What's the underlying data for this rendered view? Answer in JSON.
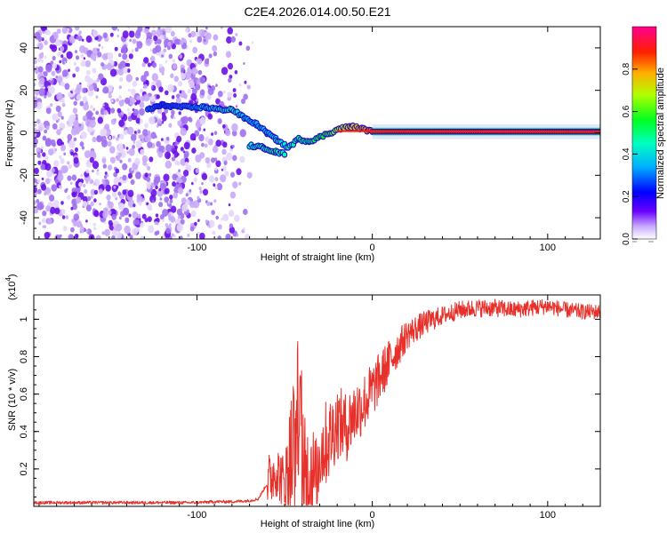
{
  "title": "C2E4.2026.014.00.50.E21",
  "chart_data": [
    {
      "type": "heatmap",
      "xlabel": "Height of straight line (km)",
      "ylabel": "Frequency (Hz)",
      "xlim": [
        -193,
        130
      ],
      "ylim": [
        -50,
        50
      ],
      "xticks": [
        -100,
        0,
        100
      ],
      "xtick_labels": [
        "-100",
        "0",
        "100"
      ],
      "yticks": [
        -40,
        -20,
        0,
        20,
        40
      ],
      "ytick_labels": [
        "-40",
        "-20",
        "0",
        "20",
        "40"
      ],
      "noise_region_x": [
        -193,
        -75
      ],
      "colorbar": {
        "label": "Normalized spectral amplitude",
        "range": [
          0,
          1
        ],
        "ticks": [
          0,
          0.2,
          0.4,
          0.6,
          0.8
        ],
        "tick_labels": [
          "0.0",
          "0.2",
          "0.4",
          "0.6",
          "0.8"
        ],
        "colormap": [
          "#ffffff",
          "#6a00ff",
          "#0000ff",
          "#00c8ff",
          "#00ff40",
          "#c8ff00",
          "#ffb000",
          "#ff0000",
          "#ff0080"
        ]
      },
      "ridge": {
        "name": "dominant frequency track",
        "points": [
          {
            "x": -128,
            "y": 11,
            "amp": 0.3
          },
          {
            "x": -120,
            "y": 13,
            "amp": 0.25
          },
          {
            "x": -105,
            "y": 12,
            "amp": 0.3
          },
          {
            "x": -95,
            "y": 12,
            "amp": 0.35
          },
          {
            "x": -87,
            "y": 11,
            "amp": 0.4
          },
          {
            "x": -80,
            "y": 11,
            "amp": 0.45
          },
          {
            "x": -73,
            "y": 7,
            "amp": 0.35
          },
          {
            "x": -66,
            "y": 4,
            "amp": 0.35
          },
          {
            "x": -60,
            "y": 0,
            "amp": 0.35
          },
          {
            "x": -55,
            "y": -3,
            "amp": 0.4
          },
          {
            "x": -48,
            "y": -7,
            "amp": 0.45
          },
          {
            "x": -42,
            "y": -3,
            "amp": 0.5
          },
          {
            "x": -36,
            "y": -4,
            "amp": 0.5
          },
          {
            "x": -30,
            "y": -2,
            "amp": 0.55
          },
          {
            "x": -24,
            "y": 0,
            "amp": 0.6
          },
          {
            "x": -18,
            "y": 2,
            "amp": 0.7
          },
          {
            "x": -12,
            "y": 3,
            "amp": 0.75
          },
          {
            "x": -6,
            "y": 2,
            "amp": 0.8
          },
          {
            "x": 0,
            "y": 0.5,
            "amp": 0.85
          },
          {
            "x": 20,
            "y": 0.5,
            "amp": 0.9
          },
          {
            "x": 60,
            "y": 0.5,
            "amp": 0.92
          },
          {
            "x": 100,
            "y": 0.5,
            "amp": 0.9
          },
          {
            "x": 130,
            "y": 0.5,
            "amp": 0.88
          }
        ],
        "lower_branch": [
          {
            "x": -70,
            "y": -6,
            "amp": 0.45
          },
          {
            "x": -62,
            "y": -7,
            "amp": 0.45
          },
          {
            "x": -55,
            "y": -9,
            "amp": 0.5
          },
          {
            "x": -50,
            "y": -10,
            "amp": 0.45
          }
        ]
      }
    },
    {
      "type": "line",
      "xlabel": "Height of straight line (km)",
      "ylabel": "SNR (10 * v/v)",
      "y_multiplier": "(x10",
      "y_multiplier_exp": "4",
      "y_multiplier_close": ")",
      "xlim": [
        -193,
        130
      ],
      "ylim": [
        0,
        1.13
      ],
      "xticks": [
        -100,
        0,
        100
      ],
      "xtick_labels": [
        "-100",
        "0",
        "100"
      ],
      "yticks": [
        0.2,
        0.4,
        0.6,
        0.8,
        1.0
      ],
      "ytick_labels": [
        "0.2",
        "0.4",
        "0.6",
        "0.8",
        "1"
      ],
      "series": [
        {
          "name": "SNR",
          "color": "#e8302a",
          "x": [
            -193,
            -180,
            -170,
            -160,
            -150,
            -140,
            -130,
            -120,
            -110,
            -100,
            -90,
            -80,
            -70,
            -65,
            -60,
            -55,
            -50,
            -45,
            -42,
            -40,
            -38,
            -35,
            -32,
            -30,
            -25,
            -20,
            -15,
            -10,
            -5,
            0,
            5,
            10,
            15,
            20,
            30,
            40,
            50,
            60,
            70,
            80,
            90,
            100,
            110,
            120,
            130
          ],
          "y": [
            0.02,
            0.02,
            0.02,
            0.02,
            0.02,
            0.02,
            0.02,
            0.02,
            0.02,
            0.02,
            0.025,
            0.025,
            0.03,
            0.04,
            0.12,
            0.2,
            0.12,
            0.3,
            0.55,
            0.25,
            0.15,
            0.2,
            0.12,
            0.3,
            0.35,
            0.45,
            0.42,
            0.5,
            0.55,
            0.62,
            0.7,
            0.78,
            0.85,
            0.92,
            0.98,
            1.02,
            1.05,
            1.06,
            1.06,
            1.05,
            1.06,
            1.07,
            1.05,
            1.04,
            1.04
          ],
          "noise_band": [
            {
              "x": -60,
              "amp": 0.15
            },
            {
              "x": -50,
              "amp": 0.15
            },
            {
              "x": -45,
              "amp": 0.45
            },
            {
              "x": -38,
              "amp": 0.3
            },
            {
              "x": -30,
              "amp": 0.25
            },
            {
              "x": -20,
              "amp": 0.2
            },
            {
              "x": -10,
              "amp": 0.18
            },
            {
              "x": 0,
              "amp": 0.15
            },
            {
              "x": 10,
              "amp": 0.12
            },
            {
              "x": 20,
              "amp": 0.08
            },
            {
              "x": 40,
              "amp": 0.05
            },
            {
              "x": 130,
              "amp": 0.04
            }
          ]
        }
      ]
    }
  ]
}
